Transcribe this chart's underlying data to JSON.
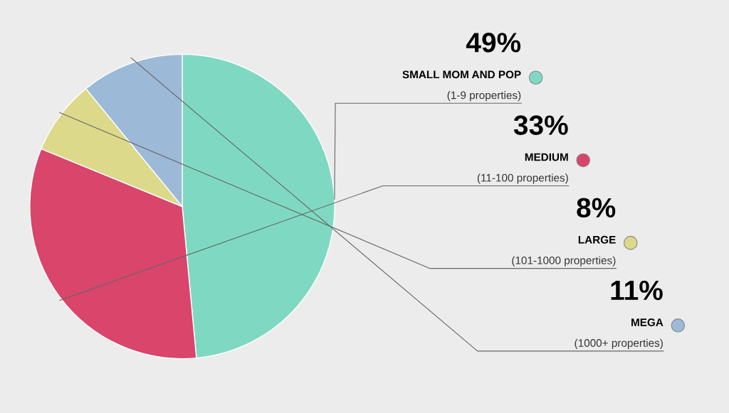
{
  "chart_data": {
    "type": "pie",
    "categories": [
      "SMALL MOM AND POP\n(1-9 properties)",
      "MEDIUM\n(11-100 properties)",
      "LARGE\n(101-1000 properties)",
      "MEGA\n(1000+ properties)"
    ],
    "values": [
      49,
      33,
      8,
      11
    ],
    "value_labels": [
      "49%",
      "33%",
      "8%",
      "11%"
    ],
    "colors": [
      "#7fd9c2",
      "#d9456b",
      "#ddd98a",
      "#9db9d8"
    ],
    "legend": "right"
  }
}
